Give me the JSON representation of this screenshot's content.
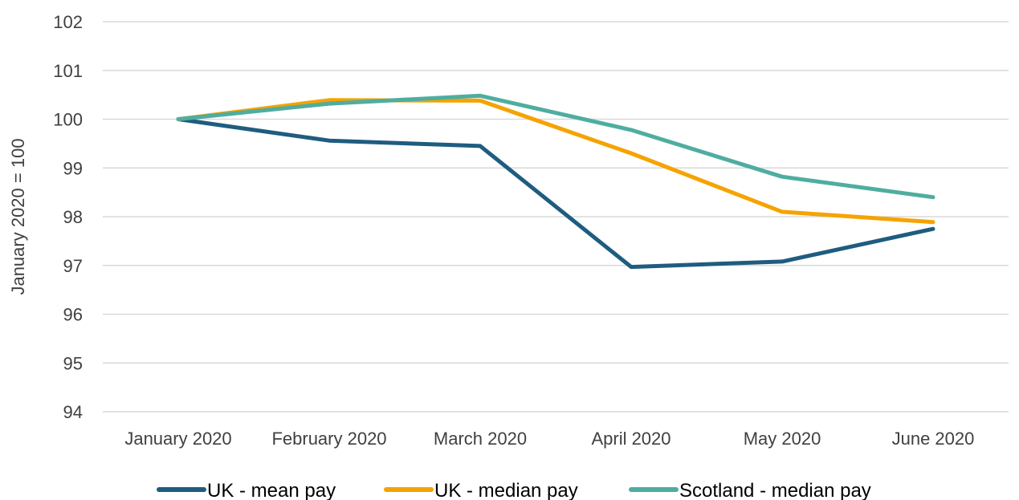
{
  "chart_data": {
    "type": "line",
    "title": "",
    "xlabel": "",
    "ylabel": "January 2020 = 100",
    "categories": [
      "January 2020",
      "February 2020",
      "March 2020",
      "April 2020",
      "May 2020",
      "June 2020"
    ],
    "ylim": [
      94,
      102
    ],
    "yticks": [
      94,
      95,
      96,
      97,
      98,
      99,
      100,
      101,
      102
    ],
    "grid": true,
    "legend_position": "bottom",
    "series": [
      {
        "name": "UK - mean pay",
        "color": "#1f5c80",
        "values": [
          100,
          99.56,
          99.45,
          96.97,
          97.08,
          97.75
        ]
      },
      {
        "name": "UK - median pay",
        "color": "#f5a300",
        "values": [
          100,
          100.39,
          100.38,
          99.3,
          98.1,
          97.89
        ]
      },
      {
        "name": "Scotland - median pay",
        "color": "#4fada0",
        "values": [
          100,
          100.32,
          100.48,
          99.78,
          98.82,
          98.4
        ]
      }
    ]
  }
}
